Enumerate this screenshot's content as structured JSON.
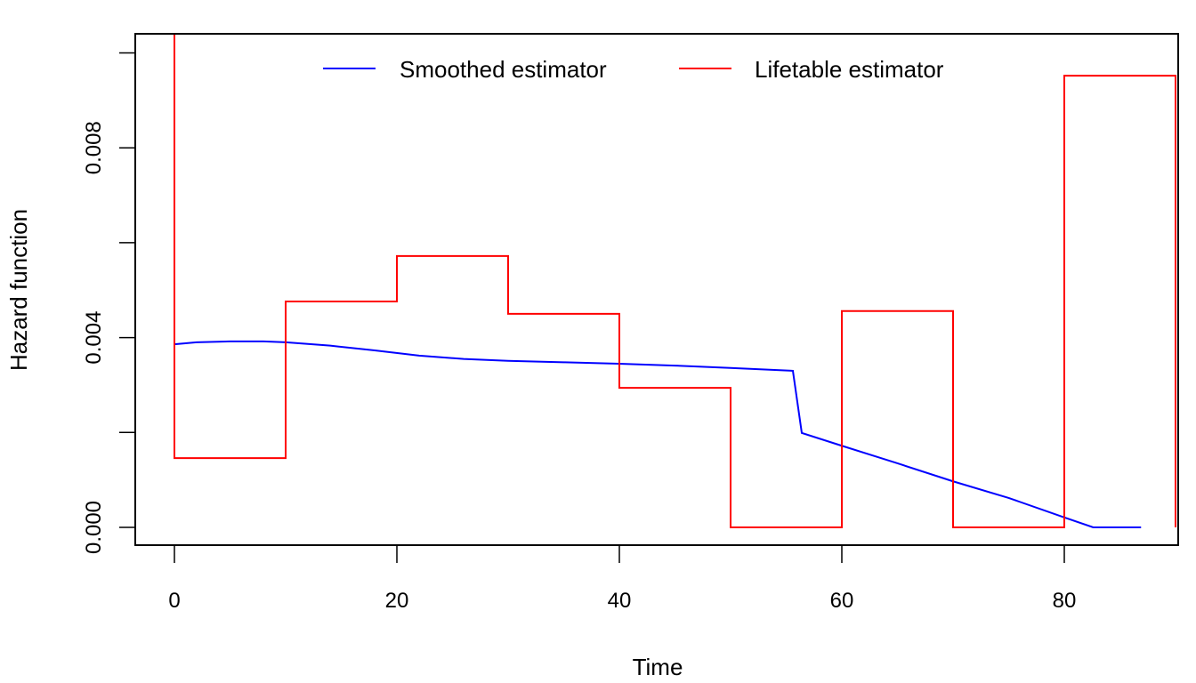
{
  "chart_data": {
    "type": "line",
    "title": "",
    "xlabel": "Time",
    "ylabel": "Hazard function",
    "xlim": [
      -3.6,
      90
    ],
    "ylim": [
      -0.0004,
      0.0104
    ],
    "x_ticks": [
      0,
      20,
      40,
      60,
      80
    ],
    "x_tick_labels": [
      "0",
      "20",
      "40",
      "60",
      "80"
    ],
    "y_ticks": [
      0.0,
      0.002,
      0.004,
      0.006,
      0.008,
      0.01
    ],
    "y_tick_labels": [
      "0.000",
      "",
      "0.004",
      "",
      "0.008",
      ""
    ],
    "grid": false,
    "legend": {
      "position": "top",
      "orientation": "horizontal"
    },
    "series": [
      {
        "name": "Smoothed estimator",
        "color": "#0000ff",
        "kind": "line",
        "x": [
          0,
          2,
          5,
          8,
          10,
          14,
          18,
          22,
          26,
          30,
          35,
          40,
          45,
          50,
          55.6,
          56.4,
          60,
          65,
          70,
          75,
          80,
          82.6,
          86.9
        ],
        "y": [
          0.00386,
          0.0039,
          0.00392,
          0.00392,
          0.0039,
          0.00383,
          0.00373,
          0.00362,
          0.00355,
          0.00351,
          0.00348,
          0.00345,
          0.00341,
          0.00336,
          0.0033,
          0.00199,
          0.00172,
          0.00135,
          0.00097,
          0.00062,
          0.00021,
          0.0,
          0.0
        ]
      },
      {
        "name": "Lifetable estimator",
        "color": "#ff0000",
        "kind": "step",
        "breaks": [
          0,
          10,
          20,
          30,
          40,
          50,
          60,
          70,
          80,
          90
        ],
        "values": [
          0.00146,
          0.00476,
          0.00572,
          0.0045,
          0.00294,
          0.0,
          0.00456,
          0.0,
          0.00952
        ],
        "start_value": 0.011
      }
    ]
  }
}
